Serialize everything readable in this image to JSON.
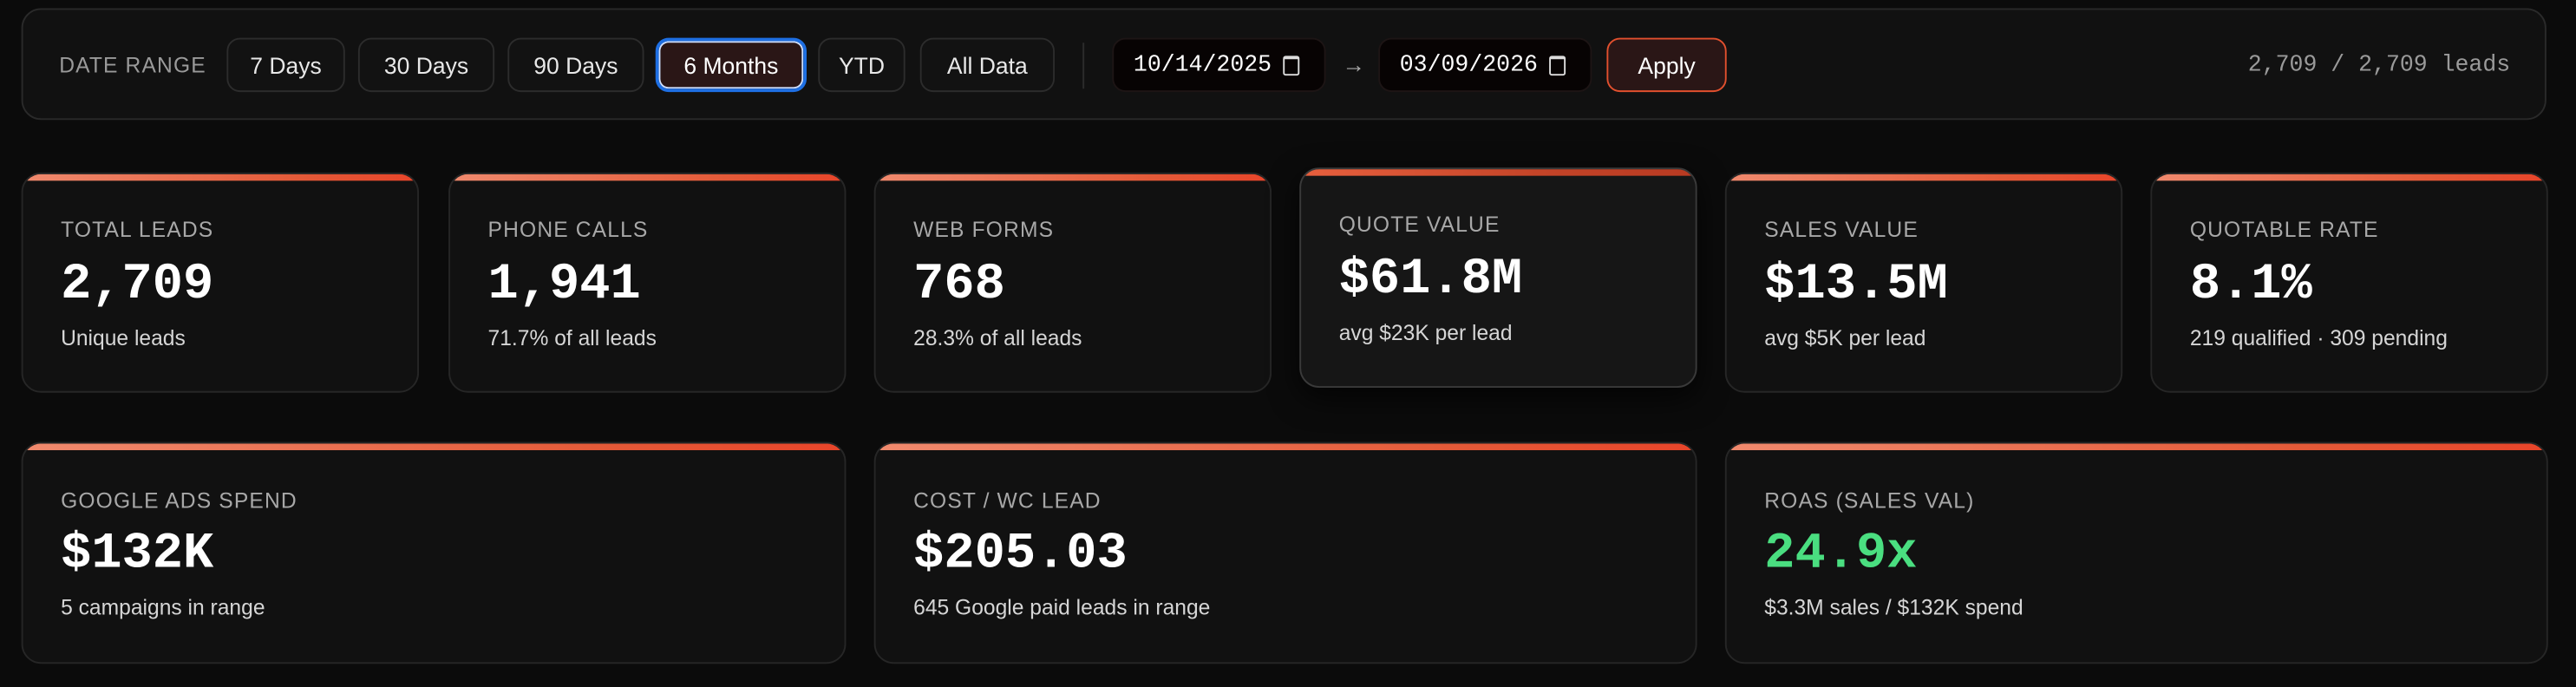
{
  "toolbar": {
    "date_range_label": "DATE RANGE",
    "presets": [
      {
        "label": "7 Days",
        "active": false
      },
      {
        "label": "30 Days",
        "active": false
      },
      {
        "label": "90 Days",
        "active": false
      },
      {
        "label": "6 Months",
        "active": true
      },
      {
        "label": "YTD",
        "active": false
      },
      {
        "label": "All Data",
        "active": false
      }
    ],
    "start_date": "10/14/2025",
    "end_date": "03/09/2026",
    "arrow": "→",
    "apply_label": "Apply",
    "lead_count": "2,709 / 2,709 leads"
  },
  "kpis_row1": [
    {
      "label": "TOTAL LEADS",
      "value": "2,709",
      "sub": "Unique leads"
    },
    {
      "label": "PHONE CALLS",
      "value": "1,941",
      "sub": "71.7% of all leads"
    },
    {
      "label": "WEB FORMS",
      "value": "768",
      "sub": "28.3% of all leads"
    },
    {
      "label": "QUOTE VALUE",
      "value": "$61.8M",
      "sub": "avg $23K per lead"
    },
    {
      "label": "SALES VALUE",
      "value": "$13.5M",
      "sub": "avg $5K per lead"
    },
    {
      "label": "QUOTABLE RATE",
      "value": "8.1%",
      "sub": "219 qualified · 309 pending"
    }
  ],
  "kpis_row2": [
    {
      "label": "GOOGLE ADS SPEND",
      "value": "$132K",
      "sub": "5 campaigns in range"
    },
    {
      "label": "COST / WC LEAD",
      "value": "$205.03",
      "sub": "645 Google paid leads in range"
    },
    {
      "label": "ROAS (SALES VAL)",
      "value": "24.9x",
      "sub": "$3.3M sales / $132K spend"
    }
  ],
  "colors": {
    "accent": "#e8452a",
    "active_outline": "#1e6fe3",
    "positive": "#4ade80",
    "background": "#0b0b0b"
  }
}
